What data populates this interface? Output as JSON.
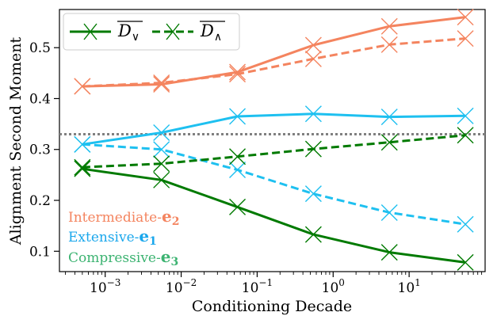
{
  "chart_data": {
    "type": "line",
    "xscale": "log",
    "xlabel": "Conditioning Decade",
    "ylabel": "Alignment Second Moment",
    "xlim": [
      0.00025,
      100
    ],
    "ylim": [
      0.06,
      0.575
    ],
    "x": [
      0.0005,
      0.0055,
      0.055,
      0.55,
      5.5,
      55
    ],
    "x_ticks": [
      {
        "value": 0.001,
        "base": "10",
        "exp": "−3"
      },
      {
        "value": 0.01,
        "base": "10",
        "exp": "−2"
      },
      {
        "value": 0.1,
        "base": "10",
        "exp": "−1"
      },
      {
        "value": 1,
        "base": "10",
        "exp": "0"
      },
      {
        "value": 10,
        "base": "10",
        "exp": "1"
      }
    ],
    "y_ticks": [
      {
        "value": 0.1,
        "label": "0.1"
      },
      {
        "value": 0.2,
        "label": "0.2"
      },
      {
        "value": 0.3,
        "label": "0.3"
      },
      {
        "value": 0.4,
        "label": "0.4"
      },
      {
        "value": 0.5,
        "label": "0.5"
      }
    ],
    "reference_line": {
      "value": 0.33,
      "color": "#808080",
      "style": "dotted"
    },
    "legend": {
      "placement": "top-left",
      "entries": [
        {
          "symbol": "D",
          "subscript": "∨",
          "style": "solid",
          "color": "#007a00"
        },
        {
          "symbol": "D",
          "subscript": "∧",
          "style": "dashed",
          "color": "#007a00"
        }
      ]
    },
    "component_labels": [
      {
        "text": "Intermediate-",
        "vector": "e",
        "index": "2",
        "color": "#f4845f"
      },
      {
        "text": "Extensive-",
        "vector": "e",
        "index": "1",
        "color": "#1aa7ec"
      },
      {
        "text": "Compressive-",
        "vector": "e",
        "index": "3",
        "color": "#3cb371"
      }
    ],
    "series": [
      {
        "name": "Intermediate e2 D∨",
        "style": "solid",
        "color": "#f4845f",
        "values": [
          0.424,
          0.428,
          0.452,
          0.505,
          0.542,
          0.56
        ]
      },
      {
        "name": "Intermediate e2 D∧",
        "style": "dashed",
        "color": "#f4845f",
        "values": [
          0.424,
          0.431,
          0.448,
          0.478,
          0.506,
          0.518
        ]
      },
      {
        "name": "Extensive e1 D∨",
        "style": "solid",
        "color": "#1ec0f0",
        "values": [
          0.31,
          0.333,
          0.365,
          0.37,
          0.364,
          0.366
        ]
      },
      {
        "name": "Extensive e1 D∧",
        "style": "dashed",
        "color": "#1ec0f0",
        "values": [
          0.31,
          0.3,
          0.26,
          0.213,
          0.176,
          0.153
        ]
      },
      {
        "name": "Compressive e3 D∨",
        "style": "solid",
        "color": "#007a00",
        "values": [
          0.262,
          0.24,
          0.187,
          0.133,
          0.098,
          0.078
        ]
      },
      {
        "name": "Compressive e3 D∧",
        "style": "dashed",
        "color": "#007a00",
        "values": [
          0.265,
          0.272,
          0.286,
          0.301,
          0.314,
          0.328
        ]
      }
    ]
  }
}
